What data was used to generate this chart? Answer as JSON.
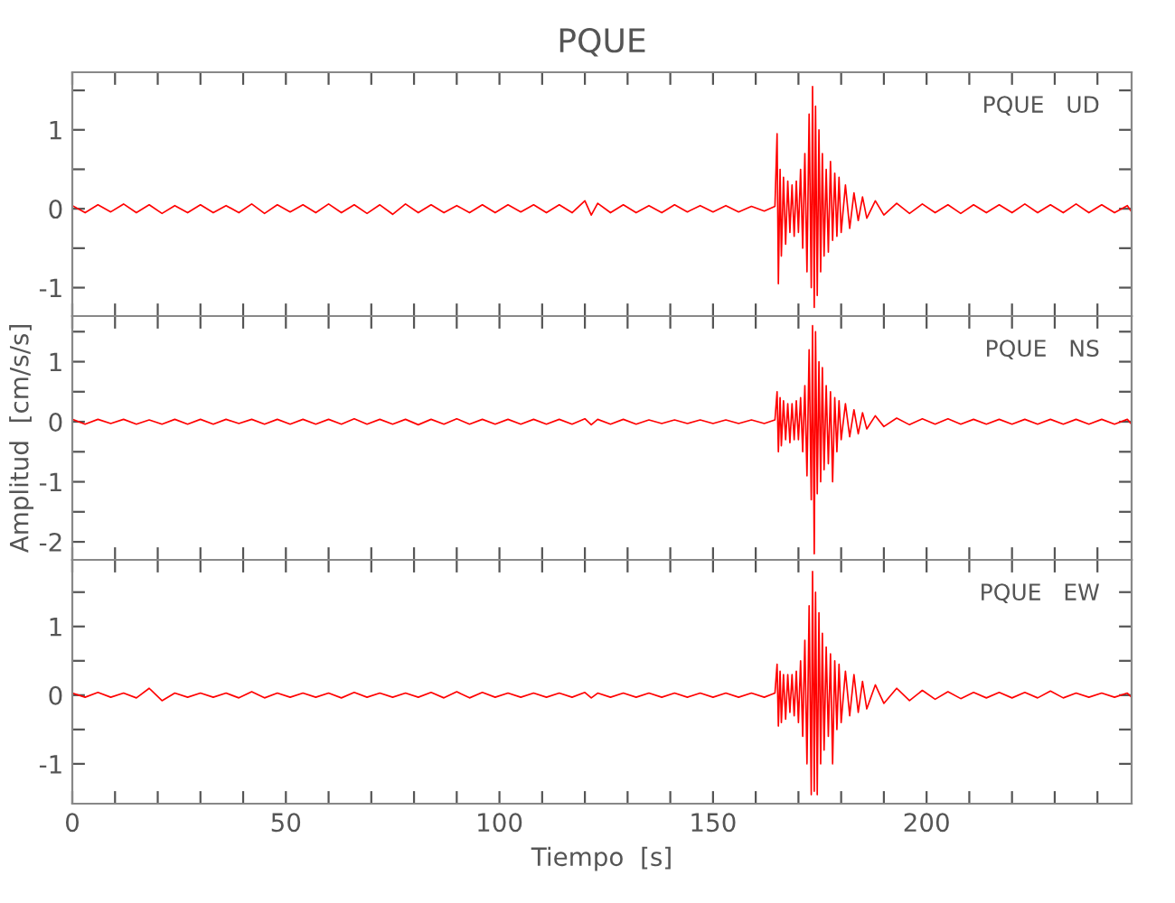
{
  "chart_data": [
    {
      "type": "line",
      "title": "PQUE",
      "annotations": [
        "PQUE   UD"
      ],
      "tick_labels": "y",
      "xlim": [
        0,
        248
      ],
      "ylim": [
        -1.36,
        1.73
      ],
      "xticks": [
        0,
        {
          "value": 10,
          "label": null
        },
        {
          "value": 20,
          "label": null
        },
        {
          "value": 30,
          "label": null
        },
        {
          "value": 40,
          "label": null
        },
        50,
        {
          "value": 60,
          "label": null
        },
        {
          "value": 70,
          "label": null
        },
        {
          "value": 80,
          "label": null
        },
        {
          "value": 90,
          "label": null
        },
        100,
        {
          "value": 110,
          "label": null
        },
        {
          "value": 120,
          "label": null
        },
        {
          "value": 130,
          "label": null
        },
        {
          "value": 140,
          "label": null
        },
        150,
        {
          "value": 160,
          "label": null
        },
        {
          "value": 170,
          "label": null
        },
        {
          "value": 180,
          "label": null
        },
        {
          "value": 190,
          "label": null
        },
        200,
        {
          "value": 210,
          "label": null
        },
        {
          "value": 220,
          "label": null
        },
        {
          "value": 230,
          "label": null
        },
        {
          "value": 240,
          "label": null
        }
      ],
      "yticks": [
        -1,
        {
          "value": -0.5,
          "label": null
        },
        0,
        {
          "value": 0.5,
          "label": null
        },
        1,
        {
          "value": 1.5,
          "label": null
        }
      ],
      "x": [
        0,
        3,
        6,
        9,
        12,
        15,
        18,
        21,
        24,
        27,
        30,
        33,
        36,
        39,
        42,
        45,
        48,
        51,
        54,
        57,
        60,
        63,
        66,
        69,
        72,
        75,
        78,
        81,
        84,
        87,
        90,
        93,
        96,
        99,
        102,
        105,
        108,
        111,
        114,
        117,
        120,
        121.5,
        123,
        126,
        129,
        132,
        135,
        138,
        141,
        144,
        147,
        150,
        153,
        156,
        159,
        162,
        164.5,
        165,
        165.3,
        165.7,
        166,
        166.5,
        167,
        167.5,
        168,
        168.5,
        169,
        169.5,
        170,
        170.5,
        171,
        171.5,
        172,
        172.5,
        173,
        173.3,
        173.7,
        174,
        174.4,
        174.8,
        175.2,
        175.6,
        176,
        176.5,
        177,
        177.5,
        178,
        178.5,
        179,
        179.5,
        180,
        181,
        182,
        183,
        184,
        185,
        186,
        188,
        190,
        193,
        196,
        199,
        202,
        205,
        208,
        211,
        214,
        217,
        220,
        223,
        226,
        229,
        232,
        235,
        238,
        241,
        244,
        247,
        248
      ],
      "series": [
        {
          "color": "#ff0000",
          "values": [
            0.04,
            -0.05,
            0.05,
            -0.04,
            0.06,
            -0.05,
            0.05,
            -0.06,
            0.04,
            -0.05,
            0.05,
            -0.05,
            0.04,
            -0.05,
            0.06,
            -0.06,
            0.05,
            -0.04,
            0.05,
            -0.05,
            0.06,
            -0.05,
            0.05,
            -0.06,
            0.05,
            -0.07,
            0.06,
            -0.05,
            0.05,
            -0.05,
            0.04,
            -0.05,
            0.05,
            -0.05,
            0.05,
            -0.04,
            0.05,
            -0.05,
            0.05,
            -0.05,
            0.1,
            -0.08,
            0.07,
            -0.05,
            0.05,
            -0.05,
            0.04,
            -0.05,
            0.05,
            -0.04,
            0.04,
            -0.04,
            0.04,
            -0.04,
            0.03,
            -0.03,
            0.03,
            0.95,
            -0.95,
            0.5,
            -0.6,
            0.4,
            -0.45,
            0.35,
            -0.3,
            0.3,
            -0.35,
            0.35,
            -0.3,
            0.5,
            -0.5,
            0.7,
            -0.8,
            1.2,
            -1.0,
            1.55,
            -1.25,
            1.3,
            -1.1,
            1.0,
            -0.8,
            0.7,
            -0.6,
            0.5,
            -0.55,
            0.6,
            -0.4,
            0.45,
            -0.35,
            0.4,
            -0.3,
            0.3,
            -0.25,
            0.2,
            -0.15,
            0.15,
            -0.12,
            0.1,
            -0.08,
            0.07,
            -0.06,
            0.06,
            -0.05,
            0.05,
            -0.06,
            0.05,
            -0.05,
            0.05,
            -0.05,
            0.06,
            -0.05,
            0.05,
            -0.05,
            0.06,
            -0.05,
            0.05,
            -0.05,
            0.04,
            -0.04
          ]
        }
      ]
    },
    {
      "type": "line",
      "ylabel": "Amplitud  [cm/s/s]",
      "annotations": [
        "PQUE   NS"
      ],
      "tick_labels": "y",
      "xlim": [
        0,
        248
      ],
      "ylim": [
        -2.3,
        1.76
      ],
      "xticks": [
        0,
        {
          "value": 10,
          "label": null
        },
        {
          "value": 20,
          "label": null
        },
        {
          "value": 30,
          "label": null
        },
        {
          "value": 40,
          "label": null
        },
        50,
        {
          "value": 60,
          "label": null
        },
        {
          "value": 70,
          "label": null
        },
        {
          "value": 80,
          "label": null
        },
        {
          "value": 90,
          "label": null
        },
        100,
        {
          "value": 110,
          "label": null
        },
        {
          "value": 120,
          "label": null
        },
        {
          "value": 130,
          "label": null
        },
        {
          "value": 140,
          "label": null
        },
        150,
        {
          "value": 160,
          "label": null
        },
        {
          "value": 170,
          "label": null
        },
        {
          "value": 180,
          "label": null
        },
        {
          "value": 190,
          "label": null
        },
        200,
        {
          "value": 210,
          "label": null
        },
        {
          "value": 220,
          "label": null
        },
        {
          "value": 230,
          "label": null
        },
        {
          "value": 240,
          "label": null
        }
      ],
      "yticks": [
        -2,
        {
          "value": -1.5,
          "label": null
        },
        -1,
        {
          "value": -0.5,
          "label": null
        },
        0,
        {
          "value": 0.5,
          "label": null
        },
        1,
        {
          "value": 1.5,
          "label": null
        }
      ],
      "x": [
        0,
        3,
        6,
        9,
        12,
        15,
        18,
        21,
        24,
        27,
        30,
        33,
        36,
        39,
        42,
        45,
        48,
        51,
        54,
        57,
        60,
        63,
        66,
        69,
        72,
        75,
        78,
        81,
        84,
        87,
        90,
        93,
        96,
        99,
        102,
        105,
        108,
        111,
        114,
        117,
        120,
        121.5,
        123,
        126,
        129,
        132,
        135,
        138,
        141,
        144,
        147,
        150,
        153,
        156,
        159,
        162,
        164.5,
        165,
        165.3,
        165.7,
        166,
        166.5,
        167,
        167.5,
        168,
        168.5,
        169,
        169.5,
        170,
        170.5,
        171,
        171.5,
        172,
        172.5,
        173,
        173.3,
        173.7,
        174,
        174.4,
        174.8,
        175.2,
        175.6,
        176,
        176.5,
        177,
        177.5,
        178,
        178.5,
        179,
        179.5,
        180,
        181,
        182,
        183,
        184,
        185,
        186,
        188,
        190,
        193,
        196,
        199,
        202,
        205,
        208,
        211,
        214,
        217,
        220,
        223,
        226,
        229,
        232,
        235,
        238,
        241,
        244,
        247,
        248
      ],
      "series": [
        {
          "color": "#ff0000",
          "values": [
            0.04,
            -0.04,
            0.04,
            -0.03,
            0.04,
            -0.04,
            0.03,
            -0.04,
            0.04,
            -0.04,
            0.04,
            -0.04,
            0.04,
            -0.03,
            0.04,
            -0.04,
            0.04,
            -0.04,
            0.04,
            -0.04,
            0.04,
            -0.04,
            0.05,
            -0.04,
            0.04,
            -0.04,
            0.04,
            -0.05,
            0.04,
            -0.04,
            0.05,
            -0.04,
            0.04,
            -0.04,
            0.04,
            -0.04,
            0.04,
            -0.04,
            0.04,
            -0.04,
            0.05,
            -0.05,
            0.04,
            -0.04,
            0.04,
            -0.04,
            0.03,
            -0.03,
            0.03,
            -0.03,
            0.03,
            -0.03,
            0.03,
            -0.03,
            0.03,
            -0.03,
            0.03,
            0.5,
            -0.5,
            0.4,
            -0.4,
            0.35,
            -0.3,
            0.3,
            -0.35,
            0.3,
            -0.3,
            0.35,
            -0.3,
            0.4,
            -0.5,
            0.6,
            -0.9,
            1.2,
            -1.3,
            1.6,
            -2.2,
            1.5,
            -1.2,
            1.0,
            -1.0,
            0.9,
            -0.8,
            0.6,
            -0.7,
            0.5,
            -1.0,
            0.4,
            -0.5,
            0.35,
            -0.3,
            0.3,
            -0.25,
            0.2,
            -0.2,
            0.15,
            -0.12,
            0.1,
            -0.08,
            0.06,
            -0.05,
            0.05,
            -0.04,
            0.05,
            -0.04,
            0.04,
            -0.04,
            0.04,
            -0.04,
            0.04,
            -0.04,
            0.04,
            -0.04,
            0.04,
            -0.04,
            0.04,
            -0.04,
            0.04,
            -0.04
          ]
        }
      ]
    },
    {
      "type": "line",
      "xlabel": "Tiempo  [s]",
      "annotations": [
        "PQUE   EW"
      ],
      "xlim": [
        0,
        248
      ],
      "ylim": [
        -1.58,
        1.97
      ],
      "xticks": [
        0,
        {
          "value": 10,
          "label": null
        },
        {
          "value": 20,
          "label": null
        },
        {
          "value": 30,
          "label": null
        },
        {
          "value": 40,
          "label": null
        },
        50,
        {
          "value": 60,
          "label": null
        },
        {
          "value": 70,
          "label": null
        },
        {
          "value": 80,
          "label": null
        },
        {
          "value": 90,
          "label": null
        },
        100,
        {
          "value": 110,
          "label": null
        },
        {
          "value": 120,
          "label": null
        },
        {
          "value": 130,
          "label": null
        },
        {
          "value": 140,
          "label": null
        },
        150,
        {
          "value": 160,
          "label": null
        },
        {
          "value": 170,
          "label": null
        },
        {
          "value": 180,
          "label": null
        },
        {
          "value": 190,
          "label": null
        },
        200,
        {
          "value": 210,
          "label": null
        },
        {
          "value": 220,
          "label": null
        },
        {
          "value": 230,
          "label": null
        },
        {
          "value": 240,
          "label": null
        }
      ],
      "yticks": [
        -1,
        {
          "value": -0.5,
          "label": null
        },
        0,
        {
          "value": 0.5,
          "label": null
        },
        1,
        {
          "value": 1.5,
          "label": null
        }
      ],
      "x": [
        0,
        3,
        6,
        9,
        12,
        15,
        18,
        21,
        24,
        27,
        30,
        33,
        36,
        39,
        42,
        45,
        48,
        51,
        54,
        57,
        60,
        63,
        66,
        69,
        72,
        75,
        78,
        81,
        84,
        87,
        90,
        93,
        96,
        99,
        102,
        105,
        108,
        111,
        114,
        117,
        120,
        121.5,
        123,
        126,
        129,
        132,
        135,
        138,
        141,
        144,
        147,
        150,
        153,
        156,
        159,
        162,
        164.5,
        165,
        165.3,
        165.7,
        166,
        166.5,
        167,
        167.5,
        168,
        168.5,
        169,
        169.5,
        170,
        170.5,
        171,
        171.5,
        172,
        172.5,
        173,
        173.3,
        173.7,
        174,
        174.4,
        174.8,
        175.2,
        175.6,
        176,
        176.5,
        177,
        177.5,
        178,
        178.5,
        179,
        179.5,
        180,
        181,
        182,
        183,
        184,
        185,
        186,
        188,
        190,
        193,
        196,
        199,
        202,
        205,
        208,
        211,
        214,
        217,
        220,
        223,
        226,
        229,
        232,
        235,
        238,
        241,
        244,
        247,
        248
      ],
      "series": [
        {
          "color": "#ff0000",
          "values": [
            0.03,
            -0.03,
            0.04,
            -0.03,
            0.03,
            -0.04,
            0.1,
            -0.08,
            0.03,
            -0.03,
            0.03,
            -0.03,
            0.03,
            -0.04,
            0.05,
            -0.04,
            0.03,
            -0.03,
            0.03,
            -0.03,
            0.03,
            -0.04,
            0.04,
            -0.03,
            0.03,
            -0.03,
            0.03,
            -0.03,
            0.04,
            -0.04,
            0.05,
            -0.04,
            0.04,
            -0.03,
            0.03,
            -0.03,
            0.03,
            -0.03,
            0.03,
            -0.03,
            0.04,
            -0.04,
            0.03,
            -0.03,
            0.03,
            -0.03,
            0.03,
            -0.03,
            0.03,
            -0.03,
            0.03,
            -0.03,
            0.03,
            -0.03,
            0.03,
            -0.03,
            0.03,
            0.45,
            -0.45,
            0.35,
            -0.4,
            0.3,
            -0.35,
            0.3,
            -0.25,
            0.3,
            -0.3,
            0.35,
            -0.4,
            0.5,
            -0.6,
            0.8,
            -1.0,
            1.3,
            -1.45,
            1.8,
            -1.4,
            1.5,
            -1.45,
            1.2,
            -1.0,
            0.9,
            -0.8,
            0.7,
            -0.6,
            0.6,
            -1.0,
            0.5,
            -0.5,
            0.45,
            -0.4,
            0.35,
            -0.3,
            0.3,
            -0.25,
            0.2,
            -0.2,
            0.15,
            -0.12,
            0.1,
            -0.08,
            0.07,
            -0.06,
            0.05,
            -0.05,
            0.04,
            -0.04,
            0.04,
            -0.04,
            0.04,
            -0.04,
            0.06,
            -0.04,
            0.03,
            -0.03,
            0.03,
            -0.03,
            0.03,
            -0.03
          ]
        }
      ]
    }
  ]
}
